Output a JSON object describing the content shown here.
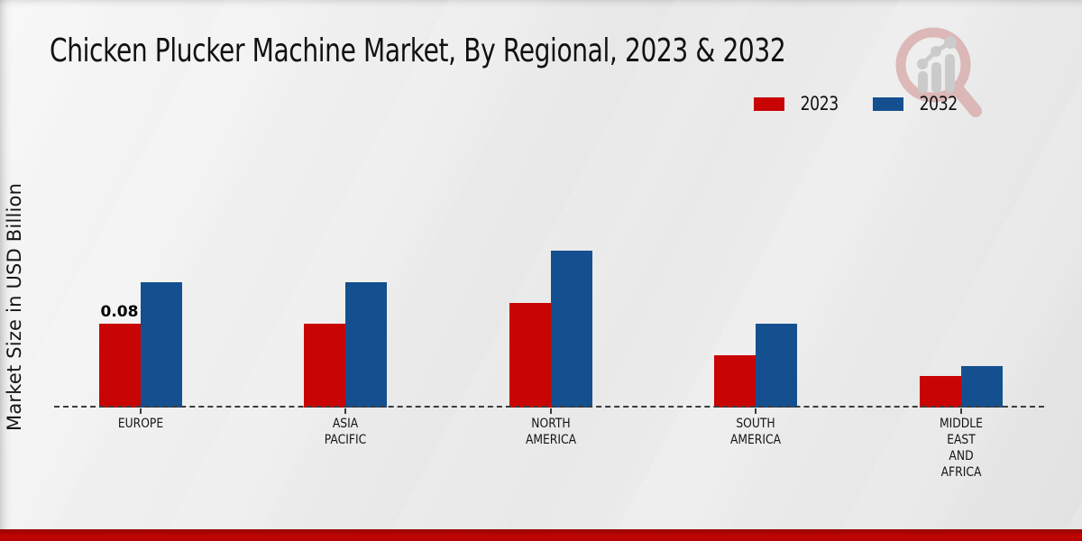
{
  "title": "Chicken Plucker Machine Market, By Regional, 2023 & 2032",
  "y_axis_label": "Market Size in USD Billion",
  "legend": [
    {
      "label": "2023",
      "color": "#c80404"
    },
    {
      "label": "2032",
      "color": "#14508f"
    }
  ],
  "colors": {
    "series_2023": "#c80404",
    "series_2032": "#14508f",
    "baseline": "#3c3c3c",
    "bottom_band": "#c20505",
    "background": "#e9e9e9"
  },
  "watermark": "market-research-logo",
  "chart_data": {
    "type": "bar",
    "categories": [
      "EUROPE",
      "ASIA\nPACIFIC",
      "NORTH\nAMERICA",
      "SOUTH\nAMERICA",
      "MIDDLE\nEAST\nAND\nAFRICA"
    ],
    "series": [
      {
        "name": "2023",
        "color": "#c80404",
        "values": [
          0.08,
          0.08,
          0.1,
          0.05,
          0.03
        ]
      },
      {
        "name": "2032",
        "color": "#14508f",
        "values": [
          0.12,
          0.12,
          0.15,
          0.08,
          0.04
        ]
      }
    ],
    "title": "Chicken Plucker Machine Market, By Regional, 2023 & 2032",
    "xlabel": "",
    "ylabel": "Market Size in USD Billion",
    "ylim": [
      0,
      0.16
    ],
    "grid": false,
    "legend_position": "top-right",
    "baseline_style": "dashed",
    "annotations": [
      {
        "series_index": 0,
        "category_index": 0,
        "text": "0.08"
      }
    ]
  }
}
